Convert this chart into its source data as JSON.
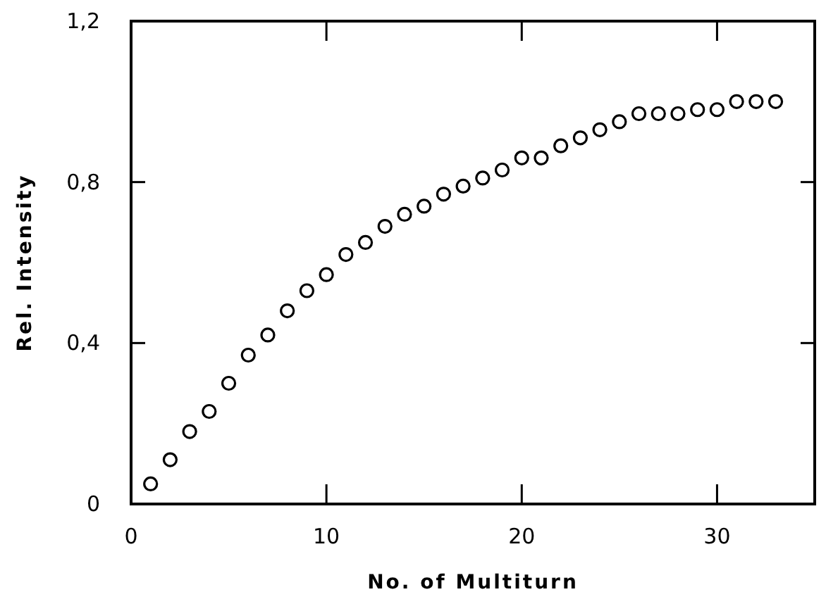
{
  "chart_data": {
    "type": "scatter",
    "xlabel": "No. of Multiturn",
    "ylabel": "Rel. Intensity",
    "x": [
      1,
      2,
      3,
      4,
      5,
      6,
      7,
      8,
      9,
      10,
      11,
      12,
      13,
      14,
      15,
      16,
      17,
      18,
      19,
      20,
      21,
      22,
      23,
      24,
      25,
      26,
      27,
      28,
      29,
      30,
      31,
      32,
      33
    ],
    "values": [
      0.05,
      0.11,
      0.18,
      0.23,
      0.3,
      0.37,
      0.42,
      0.48,
      0.53,
      0.57,
      0.62,
      0.65,
      0.69,
      0.72,
      0.74,
      0.77,
      0.79,
      0.81,
      0.83,
      0.86,
      0.86,
      0.89,
      0.91,
      0.93,
      0.95,
      0.97,
      0.97,
      0.97,
      0.98,
      0.98,
      1.0,
      1.0,
      1.0
    ],
    "color": "#000000",
    "marker": "circle",
    "xlim": [
      0,
      35
    ],
    "ylim": [
      0,
      1.2
    ],
    "xticks": [
      0,
      10,
      20,
      30
    ],
    "yticks": [
      0,
      {
        "value": 0.4,
        "label": "0,4"
      },
      {
        "value": 0.8,
        "label": "0,8"
      },
      {
        "value": 1.2,
        "label": "1,2"
      }
    ],
    "grid": false
  }
}
